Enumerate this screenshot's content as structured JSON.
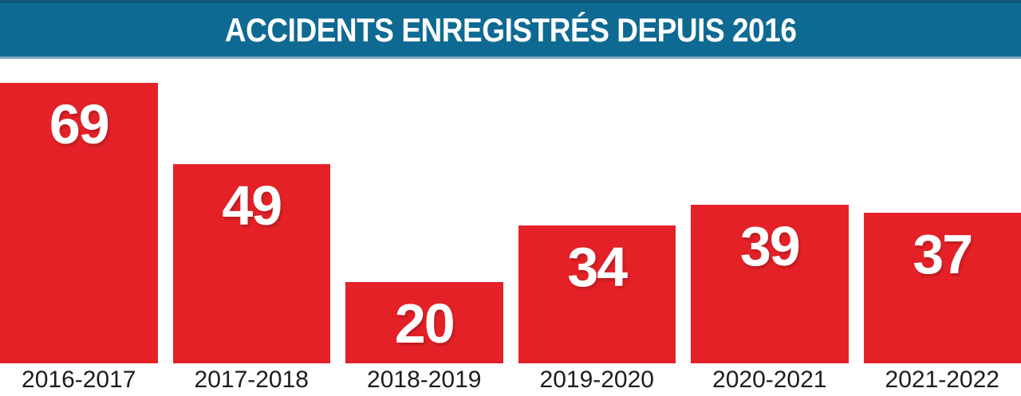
{
  "header": {
    "title": "ACCIDENTS ENREGISTRÉS DEPUIS 2016"
  },
  "chart_data": {
    "type": "bar",
    "title": "ACCIDENTS ENREGISTRÉS DEPUIS 2016",
    "categories": [
      "2016-2017",
      "2017-2018",
      "2018-2019",
      "2019-2020",
      "2020-2021",
      "2021-2022"
    ],
    "values": [
      69,
      49,
      20,
      34,
      39,
      37
    ],
    "xlabel": "",
    "ylabel": "",
    "ylim": [
      0,
      69
    ],
    "grid": false,
    "legend": "none",
    "value_labels_shown": true,
    "colors": {
      "banner_background": "#0e6a92",
      "banner_border_top": "#15587c",
      "banner_border_bottom": "#86abc0",
      "banner_text": "#ffffff",
      "bar_fill": "#e32127",
      "value_label": "#ffffff",
      "category_label": "#1d1d1f",
      "page_background": "#ffffff"
    }
  }
}
